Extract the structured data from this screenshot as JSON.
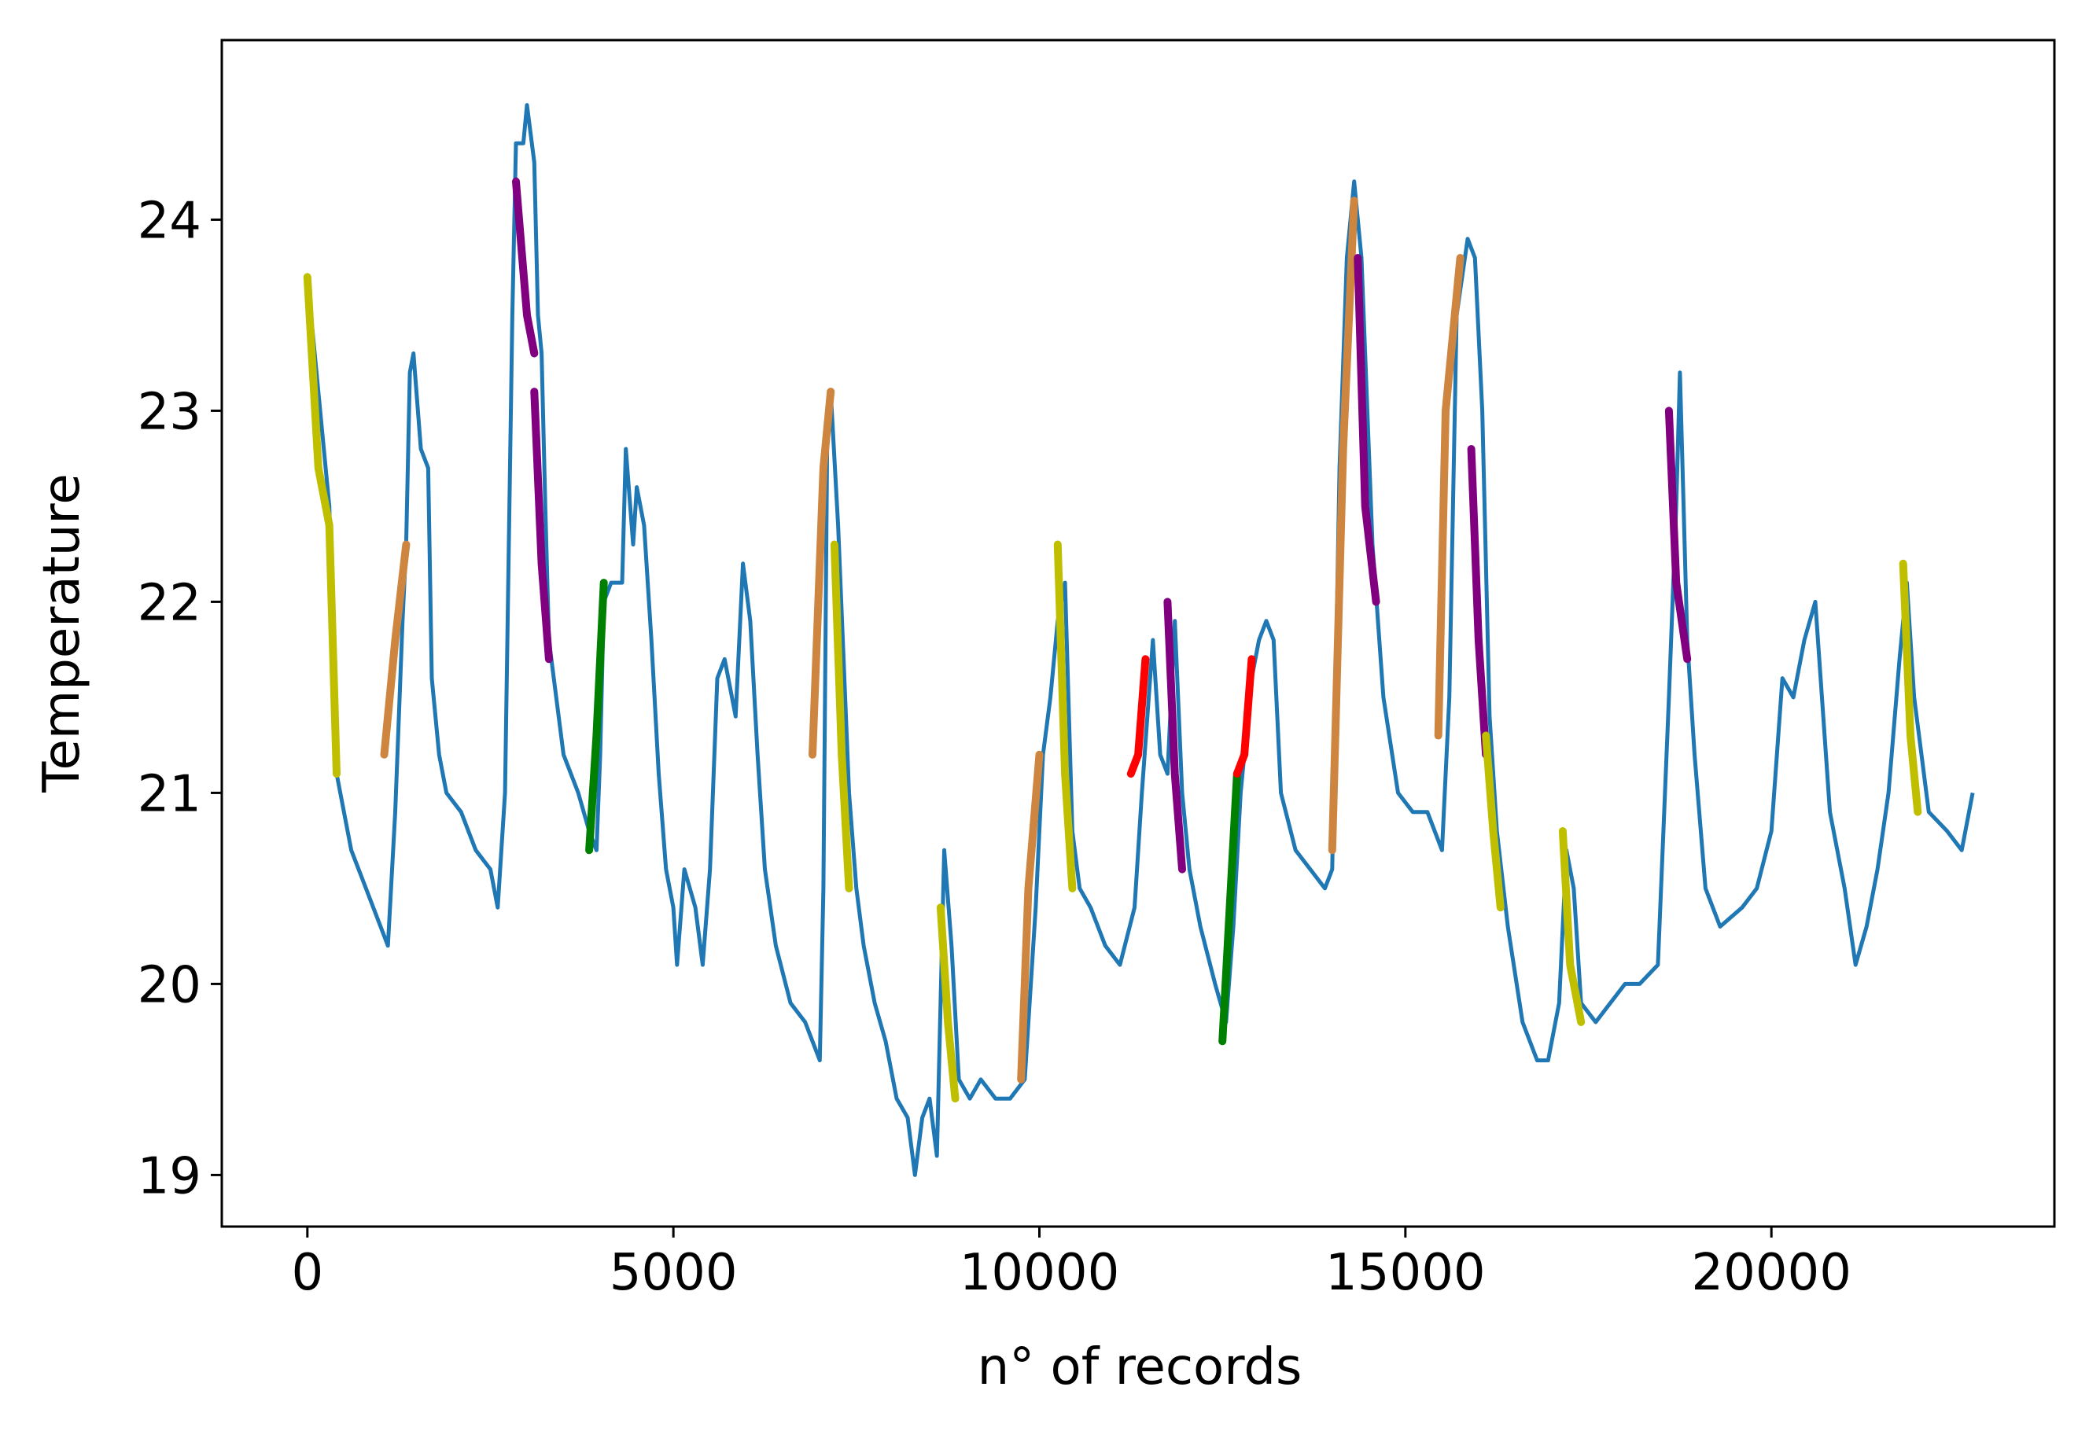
{
  "chart_data": {
    "type": "line",
    "x_label": "n° of records",
    "y_label": "Temperature",
    "xlim": [
      -1169,
      23866
    ],
    "ylim": [
      18.73,
      24.94
    ],
    "xticks": [
      0,
      5000,
      10000,
      15000,
      20000
    ],
    "yticks": [
      19,
      20,
      21,
      22,
      23,
      24
    ],
    "series": [
      {
        "color": "#1f77b4",
        "x": [
          0,
          100,
          300,
          400,
          600,
          800,
          1000,
          1100,
          1200,
          1300,
          1350,
          1400,
          1450,
          1550,
          1650,
          1700,
          1800,
          1900,
          2100,
          2300,
          2500,
          2600,
          2700,
          2800,
          2850,
          2950,
          3000,
          3100,
          3150,
          3200,
          3250,
          3300,
          3400,
          3500,
          3700,
          3850,
          3950,
          4000,
          4050,
          4150,
          4300,
          4350,
          4450,
          4500,
          4600,
          4700,
          4800,
          4900,
          5000,
          5050,
          5150,
          5300,
          5400,
          5500,
          5600,
          5700,
          5850,
          5950,
          6050,
          6150,
          6250,
          6400,
          6600,
          6800,
          6900,
          7000,
          7050,
          7100,
          7150,
          7250,
          7400,
          7500,
          7600,
          7750,
          7900,
          8050,
          8200,
          8300,
          8400,
          8500,
          8600,
          8700,
          8800,
          8900,
          9050,
          9200,
          9400,
          9600,
          9800,
          9950,
          10050,
          10150,
          10250,
          10350,
          10450,
          10550,
          10700,
          10900,
          11100,
          11300,
          11400,
          11550,
          11650,
          11750,
          11850,
          11950,
          12050,
          12200,
          12400,
          12550,
          12650,
          12750,
          12900,
          13000,
          13100,
          13200,
          13300,
          13500,
          13700,
          13900,
          14000,
          14100,
          14200,
          14300,
          14400,
          14550,
          14700,
          14900,
          15100,
          15300,
          15500,
          15600,
          15700,
          15850,
          15950,
          16050,
          16150,
          16250,
          16400,
          16600,
          16800,
          16950,
          17100,
          17200,
          17300,
          17400,
          17600,
          17800,
          18000,
          18200,
          18450,
          18600,
          18700,
          18750,
          18850,
          18950,
          19100,
          19300,
          19600,
          19800,
          20000,
          20150,
          20300,
          20450,
          20600,
          20800,
          21000,
          21150,
          21300,
          21450,
          21600,
          21750,
          21850,
          21950,
          22150,
          22400,
          22600,
          22750
        ],
        "values": [
          23.7,
          23.3,
          22.5,
          21.1,
          20.7,
          20.5,
          20.3,
          20.2,
          20.9,
          21.9,
          22.3,
          23.2,
          23.3,
          22.8,
          22.7,
          21.6,
          21.2,
          21.0,
          20.9,
          20.7,
          20.6,
          20.4,
          21.0,
          23.5,
          24.4,
          24.4,
          24.6,
          24.3,
          23.5,
          23.3,
          22.5,
          21.8,
          21.5,
          21.2,
          21.0,
          20.8,
          20.7,
          21.2,
          22.0,
          22.1,
          22.1,
          22.8,
          22.3,
          22.6,
          22.4,
          21.8,
          21.1,
          20.6,
          20.4,
          20.1,
          20.6,
          20.4,
          20.1,
          20.6,
          21.6,
          21.7,
          21.4,
          22.2,
          21.9,
          21.2,
          20.6,
          20.2,
          19.9,
          19.8,
          19.7,
          19.6,
          20.5,
          22.8,
          23.1,
          22.4,
          21.0,
          20.5,
          20.2,
          19.9,
          19.7,
          19.4,
          19.3,
          19.0,
          19.3,
          19.4,
          19.1,
          20.7,
          20.2,
          19.5,
          19.4,
          19.5,
          19.4,
          19.4,
          19.5,
          20.4,
          21.2,
          21.5,
          21.9,
          22.1,
          20.8,
          20.5,
          20.4,
          20.2,
          20.1,
          20.4,
          21.0,
          21.8,
          21.2,
          21.1,
          21.9,
          21.0,
          20.6,
          20.3,
          20.0,
          19.8,
          20.3,
          21.0,
          21.6,
          21.8,
          21.9,
          21.8,
          21.0,
          20.7,
          20.6,
          20.5,
          20.6,
          22.7,
          23.8,
          24.2,
          23.8,
          22.3,
          21.5,
          21.0,
          20.9,
          20.9,
          20.7,
          21.5,
          23.5,
          23.9,
          23.8,
          23.0,
          21.4,
          20.8,
          20.3,
          19.8,
          19.6,
          19.6,
          19.9,
          20.7,
          20.5,
          19.9,
          19.8,
          19.9,
          20.0,
          20.0,
          20.1,
          21.5,
          22.5,
          23.2,
          21.8,
          21.2,
          20.5,
          20.3,
          20.4,
          20.5,
          20.8,
          21.6,
          21.5,
          21.8,
          22.0,
          20.9,
          20.5,
          20.1,
          20.3,
          20.6,
          21.0,
          21.7,
          22.1,
          21.5,
          20.9,
          20.8,
          20.7,
          21.0
        ]
      },
      {
        "color": "#bfbf00",
        "x": [
          0,
          150,
          300,
          400
        ],
        "values": [
          23.7,
          22.7,
          22.4,
          21.1
        ]
      },
      {
        "color": "#cd853f",
        "x": [
          1050,
          1200,
          1350
        ],
        "values": [
          21.2,
          21.8,
          22.3
        ]
      },
      {
        "color": "#800080",
        "x": [
          2850,
          3000,
          3100
        ],
        "values": [
          24.2,
          23.5,
          23.3
        ]
      },
      {
        "color": "#800080",
        "x": [
          3100,
          3200,
          3300
        ],
        "values": [
          23.1,
          22.2,
          21.7
        ]
      },
      {
        "color": "#008000",
        "x": [
          3850,
          3950,
          4050
        ],
        "values": [
          20.7,
          21.3,
          22.1
        ]
      },
      {
        "color": "#cd853f",
        "x": [
          6900,
          7050,
          7150
        ],
        "values": [
          21.2,
          22.7,
          23.1
        ]
      },
      {
        "color": "#bfbf00",
        "x": [
          7200,
          7300,
          7400
        ],
        "values": [
          22.3,
          21.2,
          20.5
        ]
      },
      {
        "color": "#bfbf00",
        "x": [
          8650,
          8750,
          8850
        ],
        "values": [
          20.4,
          19.8,
          19.4
        ]
      },
      {
        "color": "#cd853f",
        "x": [
          9750,
          9850,
          10000
        ],
        "values": [
          19.5,
          20.5,
          21.2
        ]
      },
      {
        "color": "#bfbf00",
        "x": [
          10250,
          10350,
          10450
        ],
        "values": [
          22.3,
          21.1,
          20.5
        ]
      },
      {
        "color": "#ff0000",
        "x": [
          11250,
          11350,
          11450
        ],
        "values": [
          21.1,
          21.2,
          21.7
        ]
      },
      {
        "color": "#800080",
        "x": [
          11750,
          11850,
          11950
        ],
        "values": [
          22.0,
          21.1,
          20.6
        ]
      },
      {
        "color": "#008000",
        "x": [
          12500,
          12600,
          12700
        ],
        "values": [
          19.7,
          20.4,
          21.1
        ]
      },
      {
        "color": "#ff0000",
        "x": [
          12700,
          12800,
          12900
        ],
        "values": [
          21.1,
          21.2,
          21.7
        ]
      },
      {
        "color": "#cd853f",
        "x": [
          14000,
          14150,
          14300
        ],
        "values": [
          20.7,
          22.8,
          24.1
        ]
      },
      {
        "color": "#800080",
        "x": [
          14350,
          14450,
          14600
        ],
        "values": [
          23.8,
          22.5,
          22.0
        ]
      },
      {
        "color": "#cd853f",
        "x": [
          15450,
          15550,
          15750
        ],
        "values": [
          21.3,
          23.0,
          23.8
        ]
      },
      {
        "color": "#800080",
        "x": [
          15900,
          16000,
          16100
        ],
        "values": [
          22.8,
          21.8,
          21.2
        ]
      },
      {
        "color": "#bfbf00",
        "x": [
          16100,
          16200,
          16300
        ],
        "values": [
          21.3,
          20.8,
          20.4
        ]
      },
      {
        "color": "#bfbf00",
        "x": [
          17150,
          17250,
          17400
        ],
        "values": [
          20.8,
          20.1,
          19.8
        ]
      },
      {
        "color": "#800080",
        "x": [
          18600,
          18700,
          18850
        ],
        "values": [
          23.0,
          22.1,
          21.7
        ]
      },
      {
        "color": "#bfbf00",
        "x": [
          21800,
          21900,
          22000
        ],
        "values": [
          22.2,
          21.3,
          20.9
        ]
      }
    ]
  }
}
